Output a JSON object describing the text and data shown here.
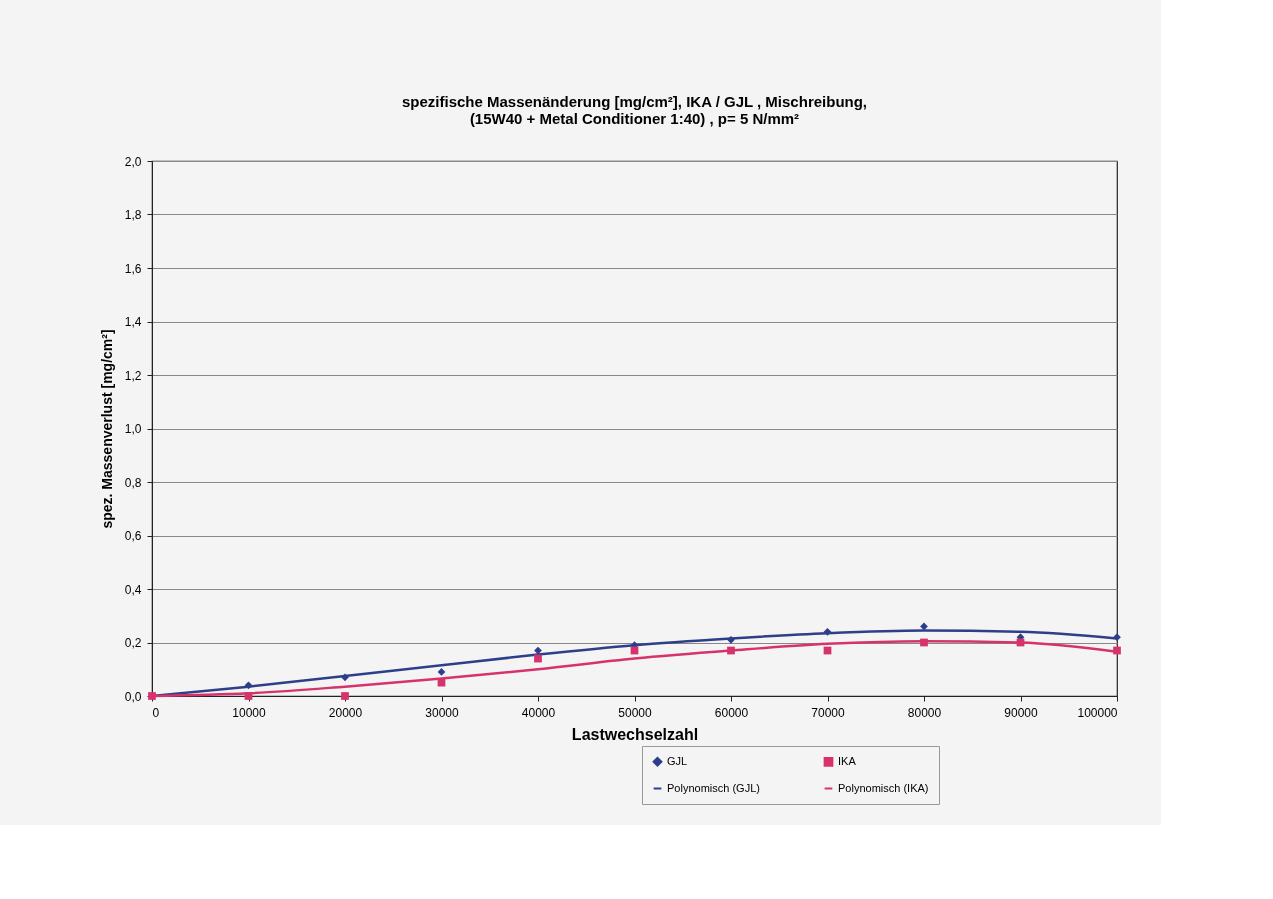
{
  "chart_data": {
    "type": "scatter",
    "title": [
      "spezifische Massenänderung [mg/cm²], IKA / GJL , Mischreibung,",
      "(15W40 + Metal Conditioner 1:40) , p= 5 N/mm²"
    ],
    "xlabel": "Lastwechselzahl",
    "ylabel": "spez. Massenverlust [mg/cm²]",
    "x": [
      0,
      10000,
      20000,
      30000,
      40000,
      50000,
      60000,
      70000,
      80000,
      90000,
      100000
    ],
    "series": [
      {
        "name": "GJL",
        "marker": "diamond",
        "color": "#2e3f8a",
        "values": [
          null,
          0.04,
          0.07,
          0.09,
          0.17,
          0.19,
          0.21,
          0.24,
          0.26,
          0.22,
          0.22
        ]
      },
      {
        "name": "IKA",
        "marker": "square",
        "color": "#d6336c",
        "values": [
          0,
          0.0,
          0.0,
          0.05,
          0.14,
          0.17,
          0.17,
          0.17,
          0.2,
          0.2,
          0.17
        ]
      },
      {
        "name": "Polynomisch (GJL)",
        "type": "line",
        "color": "#2e3f8a",
        "values": [
          0,
          0.035,
          0.075,
          0.115,
          0.155,
          0.19,
          0.215,
          0.235,
          0.245,
          0.24,
          0.215
        ]
      },
      {
        "name": "Polynomisch (IKA)",
        "type": "line",
        "color": "#d6336c",
        "values": [
          0,
          0.01,
          0.035,
          0.065,
          0.1,
          0.14,
          0.17,
          0.195,
          0.205,
          0.2,
          0.165
        ]
      }
    ],
    "xlim": [
      0,
      100000
    ],
    "xticks": [
      0,
      10000,
      20000,
      30000,
      40000,
      50000,
      60000,
      70000,
      80000,
      90000,
      100000
    ],
    "ylim": [
      0,
      2.0
    ],
    "yticks": [
      {
        "value": 0,
        "label": "0,0"
      },
      {
        "value": 0.2,
        "label": "0,2"
      },
      {
        "value": 0.4,
        "label": "0,4"
      },
      {
        "value": 0.6,
        "label": "0,6"
      },
      {
        "value": 0.8,
        "label": "0,8"
      },
      {
        "value": 1.0,
        "label": "1,0"
      },
      {
        "value": 1.2,
        "label": "1,2"
      },
      {
        "value": 1.4,
        "label": "1,4"
      },
      {
        "value": 1.6,
        "label": "1,6"
      },
      {
        "value": 1.8,
        "label": "1,8"
      },
      {
        "value": 2.0,
        "label": "2,0"
      }
    ],
    "grid": "y",
    "legend": "bottom right",
    "line_style": "solid"
  }
}
